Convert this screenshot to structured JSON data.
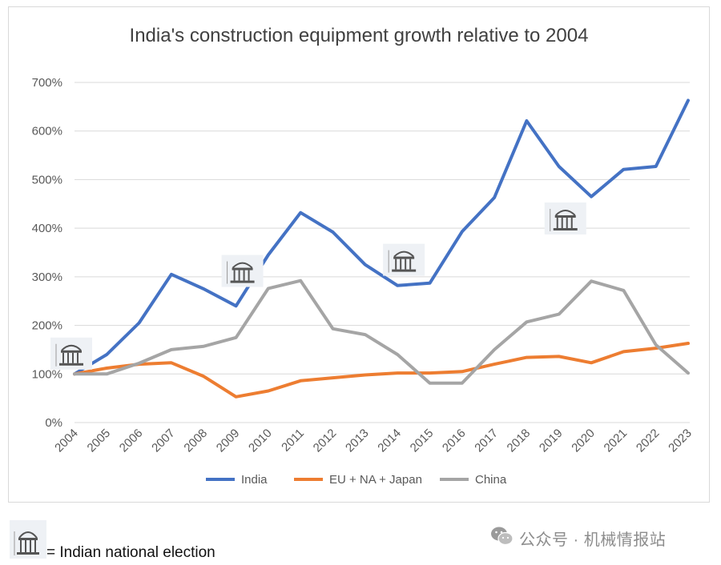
{
  "chart_data": {
    "type": "line",
    "title": "India's construction equipment growth relative to 2004",
    "xlabel": "",
    "ylabel": "",
    "x": [
      "2004",
      "2005",
      "2006",
      "2007",
      "2008",
      "2009",
      "2010",
      "2011",
      "2012",
      "2013",
      "2014",
      "2015",
      "2016",
      "2017",
      "2018",
      "2019",
      "2020",
      "2021",
      "2022",
      "2023"
    ],
    "ylim": [
      0,
      700
    ],
    "yticks": [
      0,
      100,
      200,
      300,
      400,
      500,
      600,
      700
    ],
    "ytick_labels": [
      "0%",
      "100%",
      "200%",
      "300%",
      "400%",
      "500%",
      "600%",
      "700%"
    ],
    "grid": true,
    "legend_position": "bottom",
    "series": [
      {
        "name": "India",
        "color": "#4472c4",
        "values": [
          100,
          140,
          205,
          305,
          275,
          240,
          345,
          432,
          392,
          325,
          282,
          287,
          393,
          463,
          621,
          527,
          465,
          521,
          527,
          663
        ]
      },
      {
        "name": "EU + NA + Japan",
        "color": "#ed7d31",
        "values": [
          100,
          112,
          120,
          123,
          95,
          53,
          65,
          86,
          92,
          98,
          102,
          102,
          105,
          120,
          134,
          136,
          123,
          146,
          153,
          163
        ]
      },
      {
        "name": "China",
        "color": "#a5a5a5",
        "values": [
          100,
          100,
          122,
          150,
          157,
          175,
          276,
          292,
          193,
          181,
          140,
          81,
          81,
          150,
          207,
          223,
          291,
          272,
          160,
          102
        ]
      }
    ],
    "election_years": [
      "2004",
      "2009",
      "2014",
      "2019"
    ],
    "election_marker_y": [
      142,
      312,
      335,
      420
    ]
  },
  "footnote": {
    "icon": "indian-parliament-icon",
    "text": "= Indian national election"
  },
  "watermark": {
    "icon": "wechat-icon",
    "text": "公众号 · 机械情报站"
  }
}
